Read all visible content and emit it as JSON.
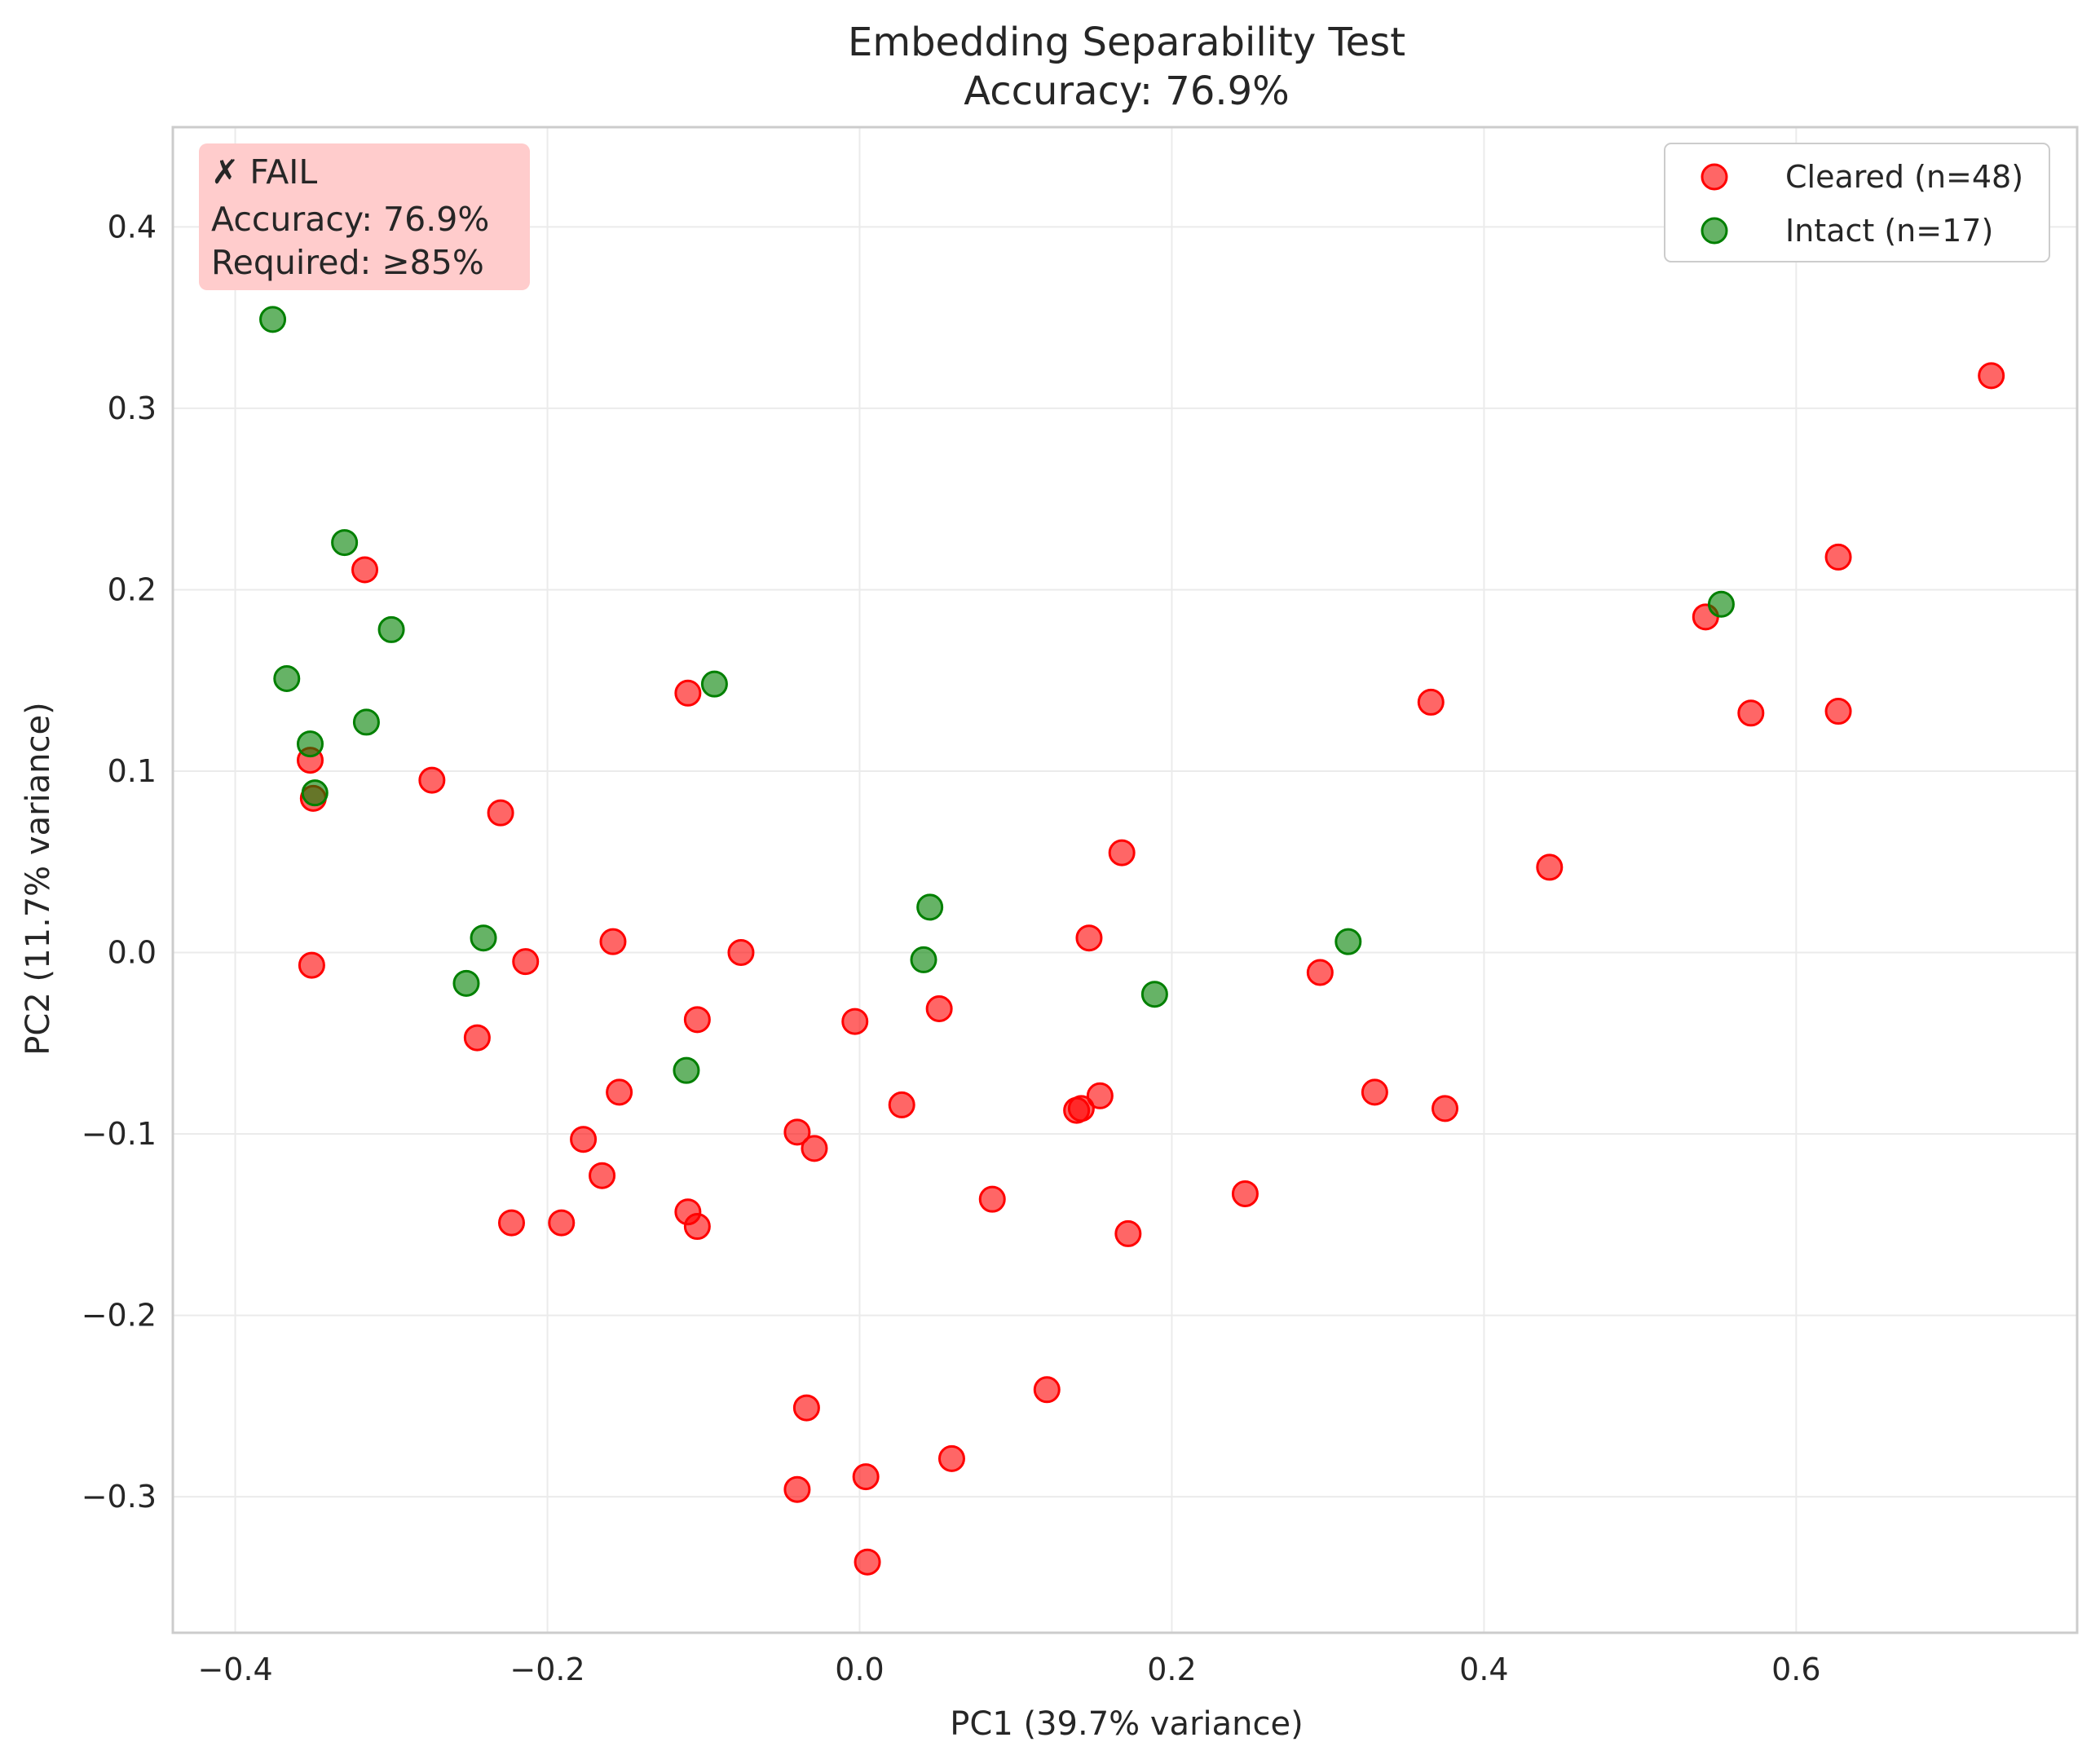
{
  "chart_data": {
    "type": "scatter",
    "title": "Embedding Separability Test",
    "subtitle": "Accuracy: 76.9%",
    "xlabel": "PC1 (39.7% variance)",
    "ylabel": "PC2 (11.7% variance)",
    "xlim": [
      -0.44,
      0.78
    ],
    "ylim": [
      -0.375,
      0.455
    ],
    "xticks": [
      -0.4,
      -0.2,
      0.0,
      0.2,
      0.4,
      0.6
    ],
    "xtick_labels": [
      "−0.4",
      "−0.2",
      "0.0",
      "0.2",
      "0.4",
      "0.6"
    ],
    "yticks": [
      -0.3,
      -0.2,
      -0.1,
      0.0,
      0.1,
      0.2,
      0.3,
      0.4
    ],
    "ytick_labels": [
      "−0.3",
      "−0.2",
      "−0.1",
      "0.0",
      "0.1",
      "0.2",
      "0.3",
      "0.4"
    ],
    "grid": true,
    "legend": "top-right",
    "status_box": {
      "lines": [
        "✗ FAIL",
        "Accuracy: 76.9%",
        "Required: ≥85%"
      ],
      "color": "#ffcccc"
    },
    "series": [
      {
        "name": "Cleared (n=48)",
        "color": "#ff0000",
        "points": [
          [
            -0.317,
            0.211
          ],
          [
            -0.352,
            0.106
          ],
          [
            -0.35,
            0.085
          ],
          [
            -0.274,
            0.095
          ],
          [
            -0.23,
            0.077
          ],
          [
            -0.351,
            -0.007
          ],
          [
            -0.214,
            -0.005
          ],
          [
            -0.158,
            0.006
          ],
          [
            -0.076,
            0.0
          ],
          [
            -0.11,
            0.143
          ],
          [
            -0.245,
            -0.047
          ],
          [
            -0.104,
            -0.037
          ],
          [
            -0.154,
            -0.077
          ],
          [
            -0.177,
            -0.103
          ],
          [
            -0.165,
            -0.123
          ],
          [
            -0.223,
            -0.149
          ],
          [
            -0.191,
            -0.149
          ],
          [
            -0.11,
            -0.143
          ],
          [
            -0.104,
            -0.151
          ],
          [
            -0.04,
            -0.099
          ],
          [
            -0.029,
            -0.108
          ],
          [
            -0.003,
            -0.038
          ],
          [
            0.051,
            -0.031
          ],
          [
            0.027,
            -0.084
          ],
          [
            0.085,
            -0.136
          ],
          [
            0.168,
            0.055
          ],
          [
            0.147,
            0.008
          ],
          [
            0.139,
            -0.087
          ],
          [
            0.142,
            -0.086
          ],
          [
            0.154,
            -0.079
          ],
          [
            0.172,
            -0.155
          ],
          [
            0.247,
            -0.133
          ],
          [
            0.295,
            -0.011
          ],
          [
            0.33,
            -0.077
          ],
          [
            0.375,
            -0.086
          ],
          [
            0.366,
            0.138
          ],
          [
            0.442,
            0.047
          ],
          [
            0.542,
            0.185
          ],
          [
            0.571,
            0.132
          ],
          [
            0.627,
            0.133
          ],
          [
            0.627,
            0.218
          ],
          [
            0.725,
            0.318
          ],
          [
            0.12,
            -0.241
          ],
          [
            0.059,
            -0.279
          ],
          [
            -0.034,
            -0.251
          ],
          [
            -0.04,
            -0.296
          ],
          [
            0.004,
            -0.289
          ],
          [
            0.005,
            -0.336
          ]
        ]
      },
      {
        "name": "Intact (n=17)",
        "color": "#008000",
        "points": [
          [
            -0.381,
            0.417
          ],
          [
            -0.376,
            0.349
          ],
          [
            -0.33,
            0.226
          ],
          [
            -0.3,
            0.178
          ],
          [
            -0.367,
            0.151
          ],
          [
            -0.316,
            0.127
          ],
          [
            -0.352,
            0.115
          ],
          [
            -0.349,
            0.088
          ],
          [
            -0.241,
            0.008
          ],
          [
            -0.252,
            -0.017
          ],
          [
            -0.093,
            0.148
          ],
          [
            -0.111,
            -0.065
          ],
          [
            0.045,
            0.025
          ],
          [
            0.041,
            -0.004
          ],
          [
            0.189,
            -0.023
          ],
          [
            0.313,
            0.006
          ],
          [
            0.552,
            0.192
          ]
        ]
      }
    ]
  }
}
